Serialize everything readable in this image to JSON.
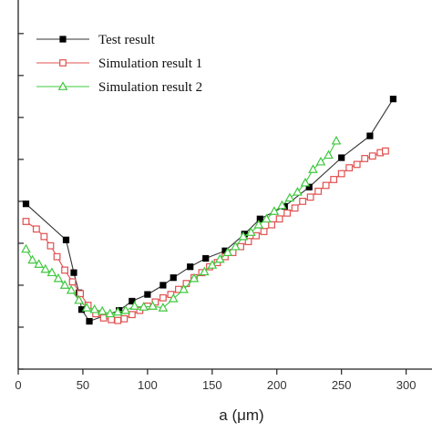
{
  "chart_data": {
    "type": "line",
    "title": "",
    "xlabel": "a (μm)",
    "ylabel": "",
    "xlim": [
      0,
      320
    ],
    "ylim": [
      0,
      4.4
    ],
    "xticks": [
      0,
      50,
      100,
      150,
      200,
      250,
      300
    ],
    "legend_position": "top-left",
    "grid": false,
    "series": [
      {
        "name": "Test result",
        "color": "#333333",
        "marker": "square-filled",
        "x": [
          6,
          37,
          43,
          47,
          49,
          55,
          78,
          88,
          100,
          112,
          120,
          133,
          145,
          160,
          175,
          187,
          206,
          225,
          250,
          272,
          290
        ],
        "y": [
          1.97,
          1.54,
          1.15,
          0.91,
          0.71,
          0.57,
          0.7,
          0.81,
          0.89,
          1.0,
          1.09,
          1.22,
          1.32,
          1.41,
          1.61,
          1.79,
          1.94,
          2.17,
          2.52,
          2.78,
          3.22
        ]
      },
      {
        "name": "Simulation result 1",
        "color": "#e05050",
        "marker": "square-open",
        "x": [
          6,
          14,
          20,
          25,
          30,
          36,
          42,
          48,
          54,
          60,
          66,
          72,
          77,
          82,
          88,
          94,
          100,
          106,
          112,
          118,
          124,
          130,
          136,
          142,
          148,
          154,
          160,
          166,
          172,
          178,
          184,
          190,
          196,
          202,
          208,
          214,
          220,
          226,
          232,
          238,
          244,
          250,
          256,
          262,
          268,
          274,
          280,
          284
        ],
        "y": [
          1.76,
          1.67,
          1.58,
          1.47,
          1.34,
          1.18,
          1.04,
          0.9,
          0.76,
          0.66,
          0.61,
          0.59,
          0.58,
          0.6,
          0.65,
          0.7,
          0.75,
          0.8,
          0.85,
          0.89,
          0.95,
          1.02,
          1.09,
          1.15,
          1.22,
          1.27,
          1.34,
          1.39,
          1.46,
          1.52,
          1.59,
          1.64,
          1.72,
          1.79,
          1.86,
          1.92,
          2.0,
          2.05,
          2.12,
          2.19,
          2.26,
          2.33,
          2.4,
          2.44,
          2.51,
          2.54,
          2.58,
          2.6
        ]
      },
      {
        "name": "Simulation result 2",
        "color": "#3ec83e",
        "marker": "triangle-open",
        "x": [
          6,
          11,
          16,
          21,
          26,
          31,
          36,
          41,
          47,
          53,
          59,
          65,
          71,
          77,
          83,
          90,
          97,
          104,
          112,
          120,
          128,
          136,
          144,
          150,
          156,
          162,
          168,
          174,
          180,
          186,
          192,
          198,
          204,
          210,
          216,
          222,
          228,
          234,
          240,
          246
        ],
        "y": [
          1.43,
          1.3,
          1.25,
          1.19,
          1.15,
          1.08,
          1.0,
          0.94,
          0.82,
          0.73,
          0.71,
          0.69,
          0.66,
          0.68,
          0.7,
          0.75,
          0.74,
          0.75,
          0.73,
          0.84,
          0.95,
          1.08,
          1.16,
          1.24,
          1.31,
          1.39,
          1.46,
          1.58,
          1.63,
          1.72,
          1.79,
          1.88,
          1.95,
          2.04,
          2.11,
          2.22,
          2.38,
          2.47,
          2.55,
          2.72
        ]
      }
    ]
  }
}
